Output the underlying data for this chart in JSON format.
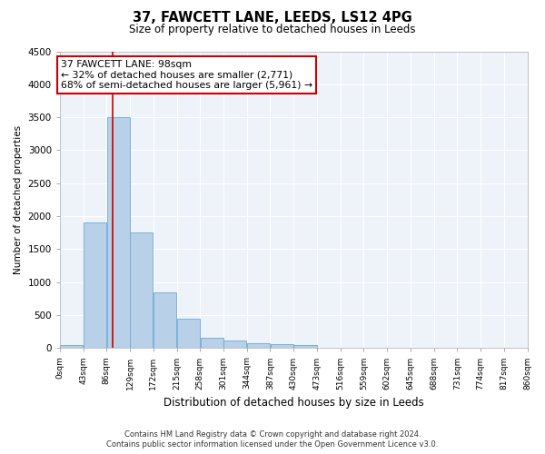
{
  "title_line1": "37, FAWCETT LANE, LEEDS, LS12 4PG",
  "title_line2": "Size of property relative to detached houses in Leeds",
  "xlabel": "Distribution of detached houses by size in Leeds",
  "ylabel": "Number of detached properties",
  "annotation_line1": "37 FAWCETT LANE: 98sqm",
  "annotation_line2": "← 32% of detached houses are smaller (2,771)",
  "annotation_line3": "68% of semi-detached houses are larger (5,961) →",
  "property_size": 98,
  "bar_color": "#b8d0e8",
  "bar_edge_color": "#6aaad4",
  "vline_color": "#cc0000",
  "annotation_box_edge": "#cc0000",
  "background_color": "#ffffff",
  "plot_bg_color": "#eef3fa",
  "grid_color": "#ffffff",
  "ylim": [
    0,
    4500
  ],
  "bin_edges": [
    0,
    43,
    86,
    129,
    172,
    215,
    258,
    301,
    344,
    387,
    430,
    473,
    516,
    559,
    602,
    645,
    688,
    731,
    774,
    817,
    860
  ],
  "bar_heights": [
    50,
    1900,
    3500,
    1750,
    850,
    450,
    160,
    120,
    75,
    55,
    40,
    0,
    0,
    0,
    0,
    0,
    0,
    0,
    0,
    0
  ],
  "footer_line1": "Contains HM Land Registry data © Crown copyright and database right 2024.",
  "footer_line2": "Contains public sector information licensed under the Open Government Licence v3.0."
}
